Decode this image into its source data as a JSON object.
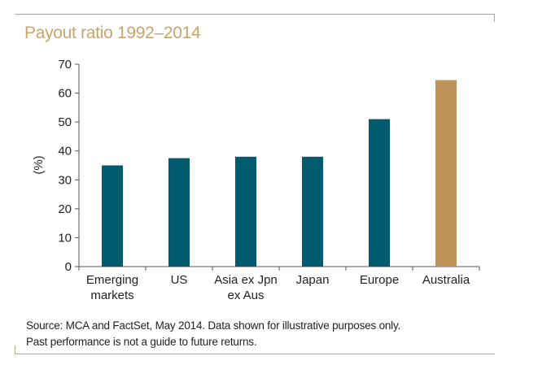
{
  "colors": {
    "frame": "#c9a46a",
    "title": "#c9a46a",
    "bar_default": "#005b6e",
    "bar_highlight": "#c0935a",
    "axis": "#555555"
  },
  "chart_data": {
    "type": "bar",
    "title": "Payout ratio 1992–2014",
    "ylabel": "(%)",
    "xlabel": "",
    "ylim": [
      0,
      70
    ],
    "yticks": [
      0,
      10,
      20,
      30,
      40,
      50,
      60,
      70
    ],
    "ytick_labels": [
      "0",
      "10",
      "20",
      "30",
      "40",
      "50",
      "60",
      "70"
    ],
    "categories": [
      [
        "Emerging",
        "markets"
      ],
      [
        "US"
      ],
      [
        "Asia ex Jpn",
        "ex Aus"
      ],
      [
        "Japan"
      ],
      [
        "Europe"
      ],
      [
        "Australia"
      ]
    ],
    "values": [
      35,
      37.5,
      38,
      38,
      51,
      64.5
    ],
    "highlight_index": 5,
    "grid": false,
    "legend": "none"
  },
  "footnote": {
    "line1": "Source: MCA and FactSet, May 2014. Data shown for illustrative purposes only.",
    "line2": "Past performance is not a guide to future returns."
  }
}
